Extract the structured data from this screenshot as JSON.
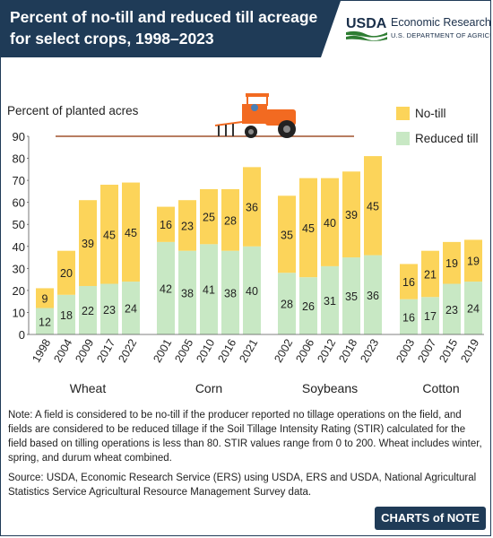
{
  "title": "Percent of no-till and reduced till acreage for select crops, 1998–2023",
  "agency": {
    "logo_text": "USDA",
    "name": "Economic Research Service",
    "department": "U.S. DEPARTMENT OF AGRICULTURE"
  },
  "badge": "CHARTS of NOTE",
  "note": "Note: A field is considered to be no-till if the producer reported no tillage operations on the field, and fields are considered to be reduced tillage if the Soil Tillage Intensity Rating (STIR) calculated for the field based on tilling operations is less than 80. STIR values range from 0 to 200. Wheat includes winter, spring, and durum wheat combined.",
  "source": "Source: USDA, Economic Research Service (ERS) using USDA, ERS and USDA, National Agricultural Statistics Service Agricultural Resource Management Survey data.",
  "colors": {
    "no_till": "#fcd45a",
    "reduced_till": "#c8e8c4",
    "header": "#1f3b57"
  },
  "chart_data": {
    "type": "bar",
    "stacked": true,
    "ylabel": "Percent of planted acres",
    "ylim": [
      0,
      90
    ],
    "yticks": [
      0,
      10,
      20,
      30,
      40,
      50,
      60,
      70,
      80,
      90
    ],
    "grid": false,
    "legend_position": "top-right",
    "series_order": [
      "Reduced till",
      "No-till"
    ],
    "groups": [
      {
        "crop": "Wheat",
        "years": [
          "1998",
          "2004",
          "2009",
          "2017",
          "2022"
        ],
        "reduced_till": [
          12,
          18,
          22,
          23,
          24
        ],
        "no_till": [
          9,
          20,
          39,
          45,
          45
        ]
      },
      {
        "crop": "Corn",
        "years": [
          "2001",
          "2005",
          "2010",
          "2016",
          "2021"
        ],
        "reduced_till": [
          42,
          38,
          41,
          38,
          40
        ],
        "no_till": [
          16,
          23,
          25,
          28,
          36
        ]
      },
      {
        "crop": "Soybeans",
        "years": [
          "2002",
          "2006",
          "2012",
          "2018",
          "2023"
        ],
        "reduced_till": [
          28,
          26,
          31,
          35,
          36
        ],
        "no_till": [
          35,
          45,
          40,
          39,
          45
        ]
      },
      {
        "crop": "Cotton",
        "years": [
          "2003",
          "2007",
          "2015",
          "2019"
        ],
        "reduced_till": [
          16,
          17,
          23,
          24
        ],
        "no_till": [
          16,
          21,
          19,
          19
        ]
      }
    ],
    "legend": [
      "No-till",
      "Reduced till"
    ]
  }
}
